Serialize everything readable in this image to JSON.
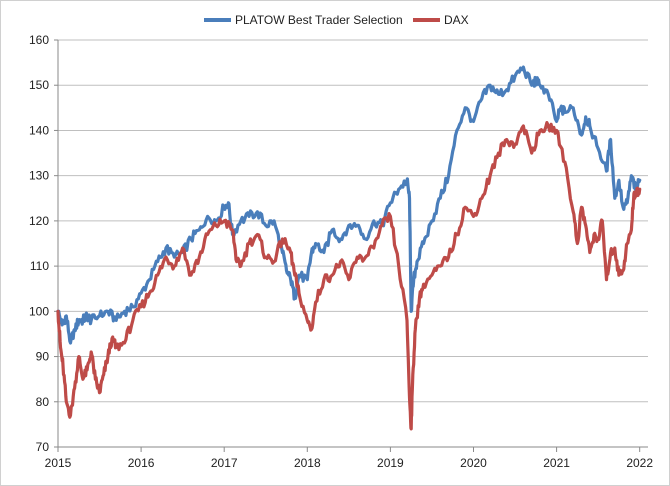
{
  "chart_data": {
    "type": "line",
    "title": "",
    "xlabel": "",
    "ylabel": "",
    "xlim": [
      2015.0,
      2022.1
    ],
    "ylim": [
      70,
      160
    ],
    "y_ticks": [
      70,
      80,
      90,
      100,
      110,
      120,
      130,
      140,
      150,
      160
    ],
    "x_ticks": [
      2015,
      2016,
      2017,
      2018,
      2019,
      2020,
      2021,
      2022
    ],
    "x_tick_labels": [
      "2015",
      "2016",
      "2017",
      "2018",
      "2019",
      "2020",
      "2021",
      "2022"
    ],
    "y_tick_labels": [
      "70",
      "80",
      "90",
      "100",
      "110",
      "120",
      "130",
      "140",
      "150",
      "160"
    ],
    "grid": "horizontal",
    "legend_position": "top-center",
    "series": [
      {
        "name": "PLATOW Best Trader Selection",
        "color": "#4a7ebb",
        "x": [
          2015.0,
          2015.05,
          2015.1,
          2015.15,
          2015.2,
          2015.25,
          2015.3,
          2015.35,
          2015.4,
          2015.5,
          2015.6,
          2015.7,
          2015.8,
          2015.9,
          2016.0,
          2016.1,
          2016.2,
          2016.3,
          2016.4,
          2016.5,
          2016.6,
          2016.7,
          2016.8,
          2016.9,
          2017.0,
          2017.05,
          2017.1,
          2017.2,
          2017.3,
          2017.4,
          2017.5,
          2017.6,
          2017.7,
          2017.75,
          2017.8,
          2017.85,
          2017.9,
          2018.0,
          2018.05,
          2018.1,
          2018.2,
          2018.3,
          2018.4,
          2018.5,
          2018.6,
          2018.7,
          2018.8,
          2018.9,
          2019.0,
          2019.1,
          2019.2,
          2019.23,
          2019.25,
          2019.28,
          2019.32,
          2019.4,
          2019.5,
          2019.6,
          2019.7,
          2019.8,
          2019.9,
          2020.0,
          2020.1,
          2020.2,
          2020.3,
          2020.4,
          2020.5,
          2020.6,
          2020.7,
          2020.75,
          2020.8,
          2020.9,
          2021.0,
          2021.05,
          2021.1,
          2021.2,
          2021.3,
          2021.35,
          2021.4,
          2021.5,
          2021.6,
          2021.65,
          2021.7,
          2021.75,
          2021.8,
          2021.85,
          2021.9,
          2021.95,
          2022.0
        ],
        "y": [
          100,
          97,
          99,
          93,
          96,
          98,
          98,
          99,
          98,
          99,
          100,
          98,
          100,
          101,
          104,
          107,
          111,
          114,
          112,
          113,
          116,
          118,
          121,
          120,
          123,
          124,
          117,
          120,
          121,
          122,
          119,
          120,
          113,
          109,
          107,
          103,
          108,
          107,
          113,
          115,
          113,
          118,
          116,
          119,
          119,
          116,
          120,
          119,
          124,
          127,
          129,
          125,
          100,
          107,
          111,
          115,
          120,
          125,
          130,
          140,
          145,
          142,
          147,
          150,
          148,
          149,
          152,
          154,
          150,
          151,
          150,
          148,
          142,
          145,
          144,
          145,
          139,
          143,
          141,
          136,
          131,
          138,
          125,
          129,
          123,
          124,
          130,
          127,
          129
        ]
      },
      {
        "name": "DAX",
        "color": "#be4b48",
        "x": [
          2015.0,
          2015.03,
          2015.06,
          2015.1,
          2015.15,
          2015.2,
          2015.25,
          2015.3,
          2015.35,
          2015.4,
          2015.45,
          2015.5,
          2015.55,
          2015.6,
          2015.65,
          2015.7,
          2015.8,
          2015.9,
          2016.0,
          2016.1,
          2016.2,
          2016.3,
          2016.4,
          2016.5,
          2016.6,
          2016.7,
          2016.8,
          2016.9,
          2017.0,
          2017.1,
          2017.15,
          2017.2,
          2017.3,
          2017.4,
          2017.5,
          2017.6,
          2017.7,
          2017.8,
          2017.85,
          2017.9,
          2018.0,
          2018.05,
          2018.1,
          2018.2,
          2018.3,
          2018.4,
          2018.5,
          2018.6,
          2018.7,
          2018.8,
          2018.9,
          2019.0,
          2019.1,
          2019.2,
          2019.23,
          2019.25,
          2019.27,
          2019.3,
          2019.35,
          2019.4,
          2019.5,
          2019.6,
          2019.7,
          2019.8,
          2019.9,
          2020.0,
          2020.1,
          2020.2,
          2020.3,
          2020.4,
          2020.5,
          2020.6,
          2020.7,
          2020.8,
          2020.9,
          2021.0,
          2021.1,
          2021.2,
          2021.25,
          2021.3,
          2021.35,
          2021.4,
          2021.45,
          2021.5,
          2021.55,
          2021.6,
          2021.65,
          2021.7,
          2021.75,
          2021.8,
          2021.85,
          2021.9,
          2021.93,
          2021.96,
          2022.0
        ],
        "y": [
          100,
          92,
          88,
          80,
          77,
          83,
          90,
          85,
          87,
          91,
          85,
          82,
          86,
          90,
          94,
          92,
          93,
          98,
          101,
          104,
          108,
          112,
          110,
          114,
          108,
          112,
          117,
          119,
          120,
          118,
          111,
          110,
          115,
          117,
          112,
          111,
          116,
          113,
          108,
          104,
          98,
          96,
          102,
          107,
          108,
          111,
          107,
          112,
          112,
          114,
          119,
          121,
          110,
          98,
          81,
          74,
          86,
          96,
          103,
          106,
          108,
          110,
          112,
          117,
          123,
          121,
          125,
          130,
          135,
          138,
          137,
          141,
          135,
          140,
          141,
          140,
          133,
          122,
          115,
          123,
          119,
          113,
          117,
          116,
          120,
          107,
          113,
          114,
          108,
          109,
          115,
          118,
          126,
          126,
          127
        ]
      }
    ]
  }
}
